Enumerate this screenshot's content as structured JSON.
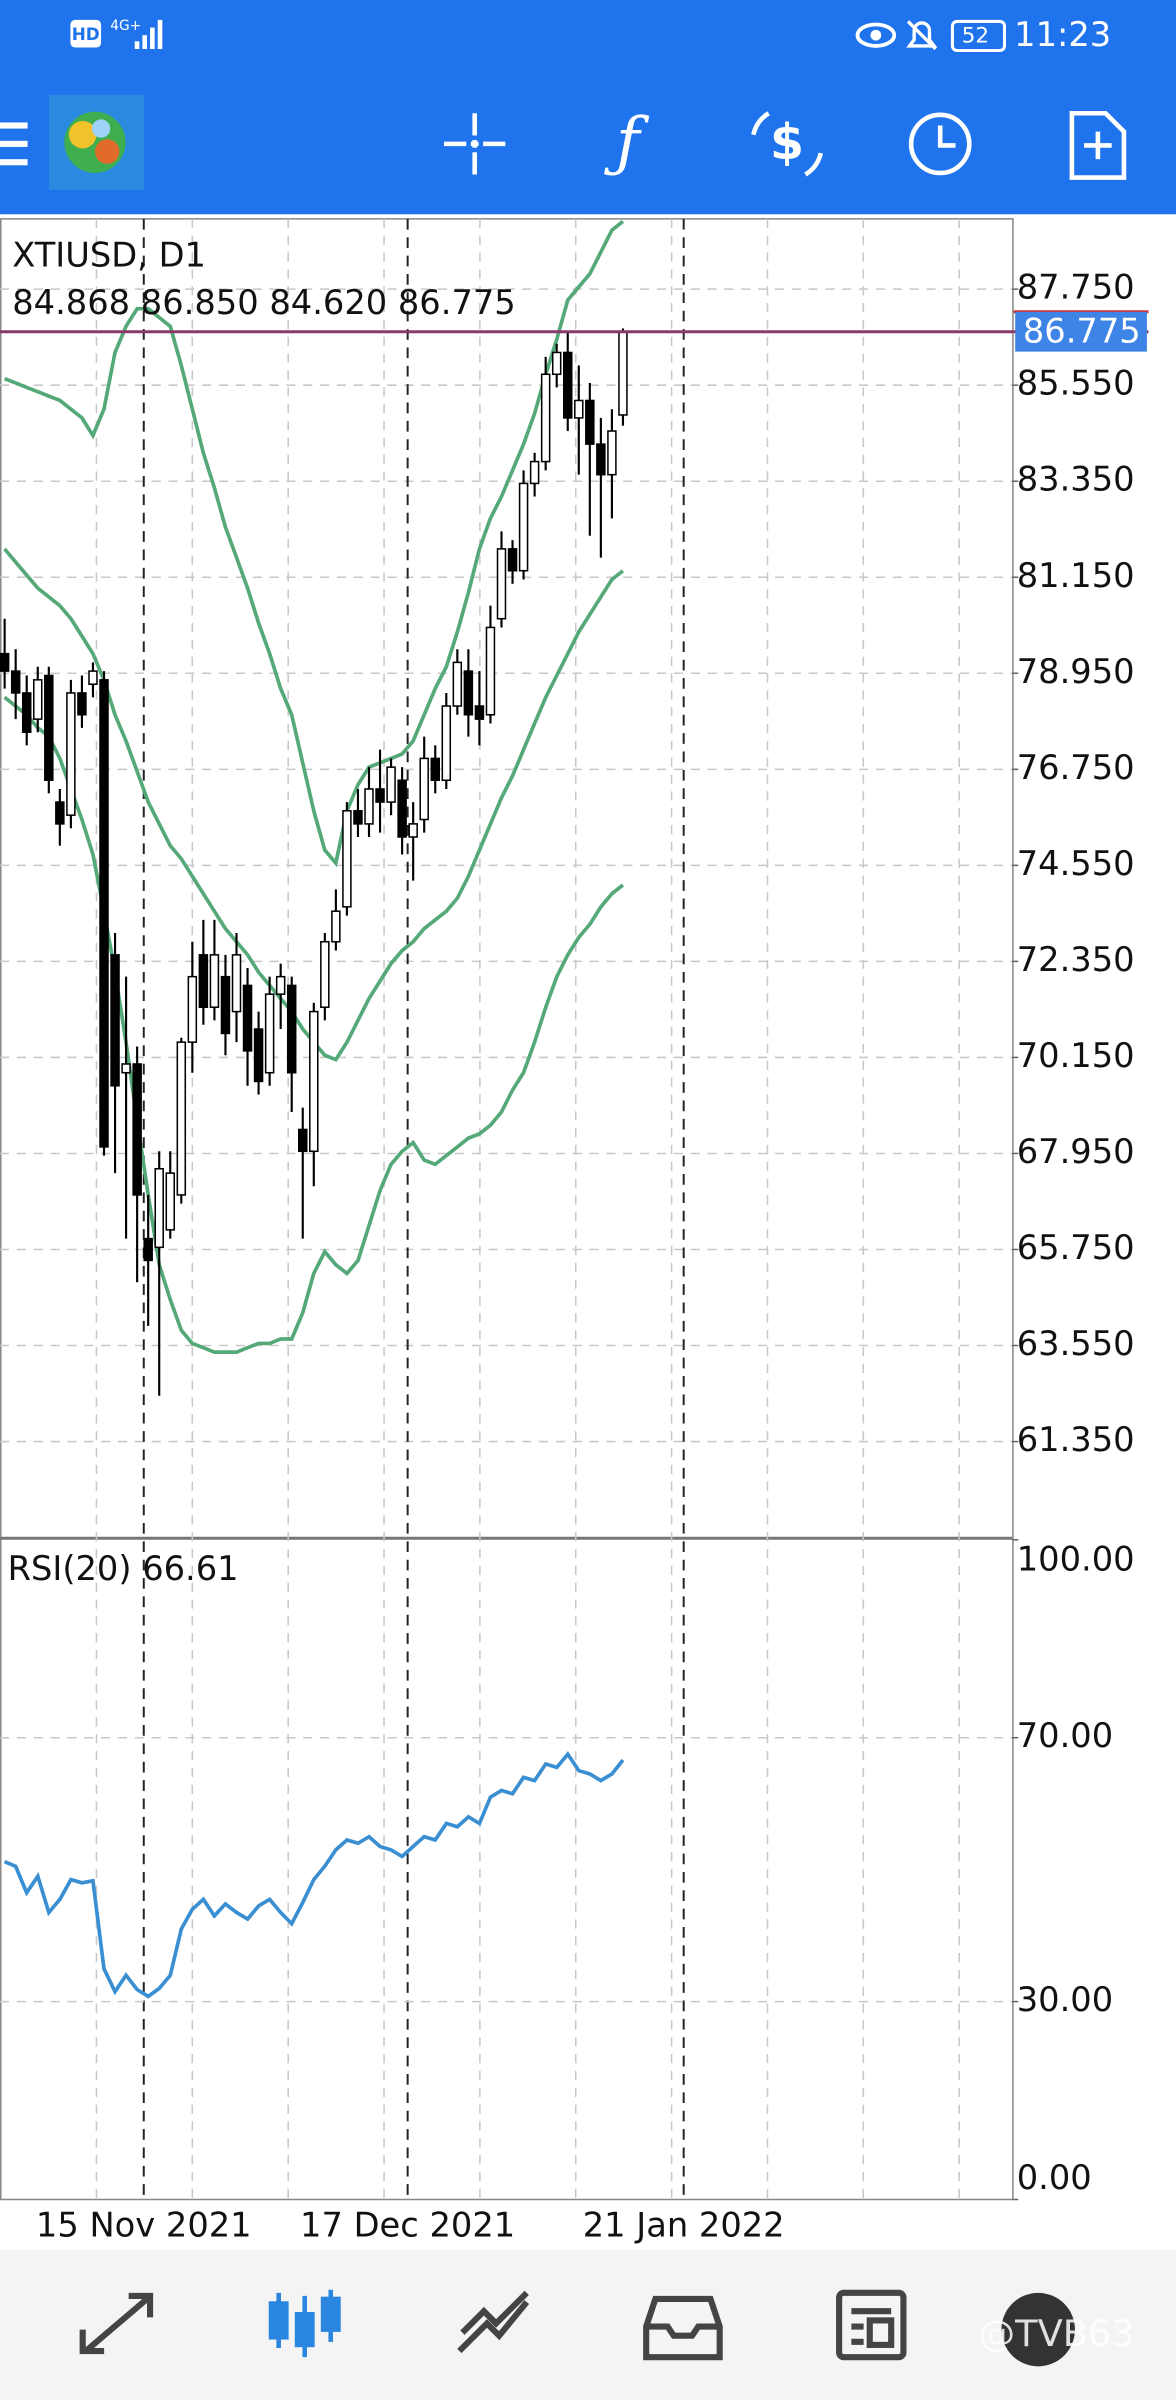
{
  "status_bar": {
    "network": "HD",
    "signal": "4G+",
    "battery": "52",
    "time": "11:23"
  },
  "chart_data": [
    {
      "type": "candlestick",
      "title": "XTIUSD, D1",
      "subtitle": "84.868 86.850 84.620 86.775",
      "open": [
        79.4,
        79.0,
        78.5,
        77.9,
        78.9,
        76.0,
        75.7,
        78.5,
        78.7,
        78.8,
        72.5,
        69.8,
        70.0,
        66.0,
        65.8,
        66.2,
        67.0,
        70.5,
        72.5,
        71.3,
        72.0,
        71.2,
        71.8,
        70.8,
        69.8,
        71.6,
        71.8,
        68.5,
        68.0,
        71.3,
        72.8,
        73.6,
        75.8,
        75.5,
        76.3,
        76.0,
        76.5,
        75.2,
        75.6,
        77.0,
        76.5,
        78.2,
        79.0,
        78.2,
        78.0,
        80.2,
        81.8,
        81.3,
        83.3,
        83.8,
        85.8,
        86.3,
        84.8,
        85.2,
        84.2,
        83.5,
        84.868
      ],
      "high": [
        80.2,
        79.5,
        78.9,
        79.1,
        79.1,
        76.3,
        78.8,
        78.9,
        79.2,
        79.0,
        73.0,
        72.0,
        70.4,
        67.0,
        68.0,
        68.0,
        70.6,
        72.8,
        73.3,
        73.3,
        72.5,
        73.0,
        72.2,
        71.2,
        72.0,
        72.3,
        72.0,
        69.0,
        71.4,
        73.0,
        74.0,
        76.0,
        76.3,
        76.8,
        77.2,
        77.0,
        76.8,
        76.0,
        77.5,
        77.3,
        78.5,
        79.5,
        79.5,
        79.0,
        80.5,
        82.2,
        82.0,
        83.6,
        84.0,
        86.2,
        86.5,
        86.8,
        86.0,
        85.6,
        84.8,
        85.0,
        86.85
      ],
      "low": [
        78.6,
        77.9,
        77.3,
        77.6,
        76.2,
        75.0,
        75.4,
        77.7,
        78.4,
        67.9,
        67.5,
        66.0,
        65.0,
        64.0,
        62.4,
        66.0,
        66.8,
        69.8,
        70.9,
        71.0,
        70.2,
        70.5,
        69.5,
        69.3,
        69.5,
        70.8,
        68.9,
        66.0,
        67.2,
        71.0,
        72.6,
        73.4,
        75.2,
        75.2,
        75.3,
        75.7,
        74.8,
        74.2,
        75.3,
        76.2,
        76.3,
        78.0,
        77.5,
        77.3,
        77.8,
        80.0,
        81.0,
        81.1,
        83.0,
        83.6,
        85.5,
        84.5,
        83.5,
        82.1,
        81.6,
        82.5,
        84.62
      ],
      "close": [
        79.0,
        78.5,
        77.6,
        78.8,
        76.5,
        75.5,
        78.5,
        78.0,
        79.0,
        68.1,
        69.5,
        70.0,
        67.0,
        65.5,
        67.6,
        67.5,
        70.5,
        72.0,
        71.3,
        72.5,
        70.7,
        72.5,
        70.3,
        69.6,
        71.6,
        72.0,
        69.8,
        68.0,
        71.2,
        72.8,
        73.5,
        75.8,
        75.5,
        76.3,
        76.0,
        76.8,
        75.2,
        75.5,
        77.0,
        76.5,
        78.2,
        79.2,
        78.0,
        77.9,
        80.0,
        81.8,
        81.3,
        83.3,
        83.8,
        85.8,
        86.3,
        84.8,
        85.2,
        84.2,
        83.5,
        84.5,
        86.775
      ],
      "bands": {
        "color": "#55a979",
        "upper": [
          85.7,
          85.6,
          85.5,
          85.4,
          85.3,
          85.2,
          85.0,
          84.8,
          84.4,
          85.0,
          86.3,
          86.9,
          87.3,
          87.3,
          87.1,
          86.9,
          86.0,
          85.0,
          84.0,
          83.2,
          82.3,
          81.6,
          80.9,
          80.1,
          79.4,
          78.6,
          78.0,
          76.9,
          75.8,
          74.9,
          74.6,
          75.8,
          76.4,
          76.8,
          76.9,
          77.0,
          77.1,
          77.4,
          78.0,
          78.6,
          79.1,
          79.9,
          80.8,
          81.8,
          82.5,
          83.0,
          83.6,
          84.2,
          84.9,
          85.8,
          86.6,
          87.5,
          87.8,
          88.1,
          88.6,
          89.1,
          89.3
        ],
        "middle": [
          81.8,
          81.5,
          81.2,
          80.9,
          80.7,
          80.5,
          80.2,
          79.8,
          79.4,
          78.8,
          78.0,
          77.4,
          76.7,
          76.0,
          75.5,
          75.0,
          74.7,
          74.3,
          73.9,
          73.5,
          73.1,
          72.8,
          72.5,
          72.1,
          71.8,
          71.5,
          71.2,
          70.8,
          70.5,
          70.2,
          70.1,
          70.5,
          71.0,
          71.5,
          71.9,
          72.3,
          72.6,
          72.8,
          73.1,
          73.3,
          73.5,
          73.8,
          74.3,
          74.9,
          75.5,
          76.1,
          76.6,
          77.2,
          77.8,
          78.4,
          78.9,
          79.4,
          79.9,
          80.3,
          80.7,
          81.1,
          81.3
        ],
        "lower": [
          78.4,
          78.2,
          78.0,
          77.7,
          77.5,
          77.0,
          76.3,
          75.6,
          74.8,
          73.5,
          72.1,
          70.5,
          68.7,
          67.0,
          65.4,
          64.6,
          63.9,
          63.6,
          63.5,
          63.4,
          63.4,
          63.4,
          63.5,
          63.6,
          63.6,
          63.7,
          63.7,
          64.3,
          65.2,
          65.7,
          65.4,
          65.2,
          65.5,
          66.3,
          67.1,
          67.7,
          68.0,
          68.2,
          67.8,
          67.7,
          67.9,
          68.1,
          68.3,
          68.4,
          68.6,
          68.9,
          69.4,
          69.8,
          70.5,
          71.3,
          72.0,
          72.5,
          72.9,
          73.2,
          73.6,
          73.9,
          74.1
        ]
      },
      "current_price": {
        "value": 86.775,
        "label": "86.775"
      },
      "xlim": [
        -0.42,
        91.25
      ],
      "ylim": [
        59.17,
        89.36
      ],
      "yticks": [
        {
          "value": 87.75,
          "label": "87.750"
        },
        {
          "value": 85.55,
          "label": "85.550"
        },
        {
          "value": 83.35,
          "label": "83.350"
        },
        {
          "value": 81.15,
          "label": "81.150"
        },
        {
          "value": 78.95,
          "label": "78.950"
        },
        {
          "value": 76.75,
          "label": "76.750"
        },
        {
          "value": 74.55,
          "label": "74.550"
        },
        {
          "value": 72.35,
          "label": "72.350"
        },
        {
          "value": 70.15,
          "label": "70.150"
        },
        {
          "value": 67.95,
          "label": "67.950"
        },
        {
          "value": 65.75,
          "label": "65.750"
        },
        {
          "value": 63.55,
          "label": "63.550"
        },
        {
          "value": 61.35,
          "label": "61.350"
        }
      ],
      "xticks": [
        {
          "value": 12.6,
          "label": "15 Nov 2021"
        },
        {
          "value": 36.5,
          "label": "17 Dec 2021"
        },
        {
          "value": 61.5,
          "label": "21 Jan 2022"
        }
      ],
      "grid": true
    },
    {
      "type": "line",
      "title": "RSI(20) 66.61",
      "color": "#3a8fd3",
      "values": [
        51.2,
        50.5,
        46.5,
        49,
        43.5,
        45.5,
        48.5,
        48,
        48.3,
        35.0,
        31.5,
        34,
        31.8,
        30.8,
        32,
        34,
        41,
        44,
        45.5,
        43,
        44.8,
        43.5,
        42.5,
        44.5,
        45.5,
        43.5,
        41.8,
        45,
        48.5,
        50.5,
        53,
        54.5,
        54,
        55,
        53.5,
        53,
        52,
        53.5,
        55,
        54.5,
        57,
        56.5,
        58,
        57,
        61,
        62,
        61.5,
        64,
        63.5,
        66,
        65.5,
        67.5,
        65,
        64.5,
        63.5,
        64.5,
        66.61
      ],
      "xlim": [
        -0.42,
        91.25
      ],
      "ylim": [
        0,
        100
      ],
      "yticks": [
        {
          "value": 100,
          "label": "100.00"
        },
        {
          "value": 70,
          "label": "70.00"
        },
        {
          "value": 30,
          "label": "30.00"
        },
        {
          "value": 0,
          "label": "0.00"
        }
      ],
      "grid": true
    }
  ],
  "watermark": "@TVB63"
}
